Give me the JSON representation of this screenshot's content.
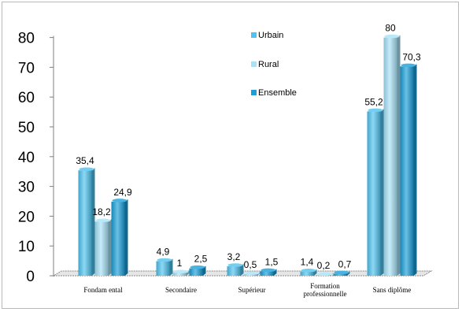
{
  "chart_data": {
    "type": "bar",
    "categories": [
      "Fondamental",
      "Secondaire",
      "Supérieur",
      "Formation professionnelle",
      "Sans diplôme"
    ],
    "category_labels": [
      [
        "Fondam ental"
      ],
      [
        "Secondaire"
      ],
      [
        "Supérieur"
      ],
      [
        "Formation",
        "professionnelle"
      ],
      [
        "Sans diplôme"
      ]
    ],
    "series": [
      {
        "name": "Urbain",
        "values": [
          35.4,
          4.9,
          3.2,
          1.4,
          55.2
        ],
        "labels": [
          "35,4",
          "4,9",
          "3,2",
          "1,4",
          "55,2"
        ],
        "color": "#4fc3ef"
      },
      {
        "name": "Rural",
        "values": [
          18.2,
          1,
          0.5,
          0.2,
          80
        ],
        "labels": [
          "18,2",
          "1",
          "0,5",
          "0,2",
          "80"
        ],
        "color": "#a8e2f7"
      },
      {
        "name": "Ensemble",
        "values": [
          24.9,
          2.5,
          1.5,
          0.7,
          70.3
        ],
        "labels": [
          "24,9",
          "2,5",
          "1,5",
          "0,7",
          "70,3"
        ],
        "color": "#1a9fd9"
      }
    ],
    "yticks": [
      "0",
      "10",
      "20",
      "30",
      "40",
      "50",
      "60",
      "70",
      "80"
    ],
    "ylim": [
      0,
      80
    ],
    "grid": false,
    "legend_position": "top-center",
    "style": "3d-cylinder"
  }
}
